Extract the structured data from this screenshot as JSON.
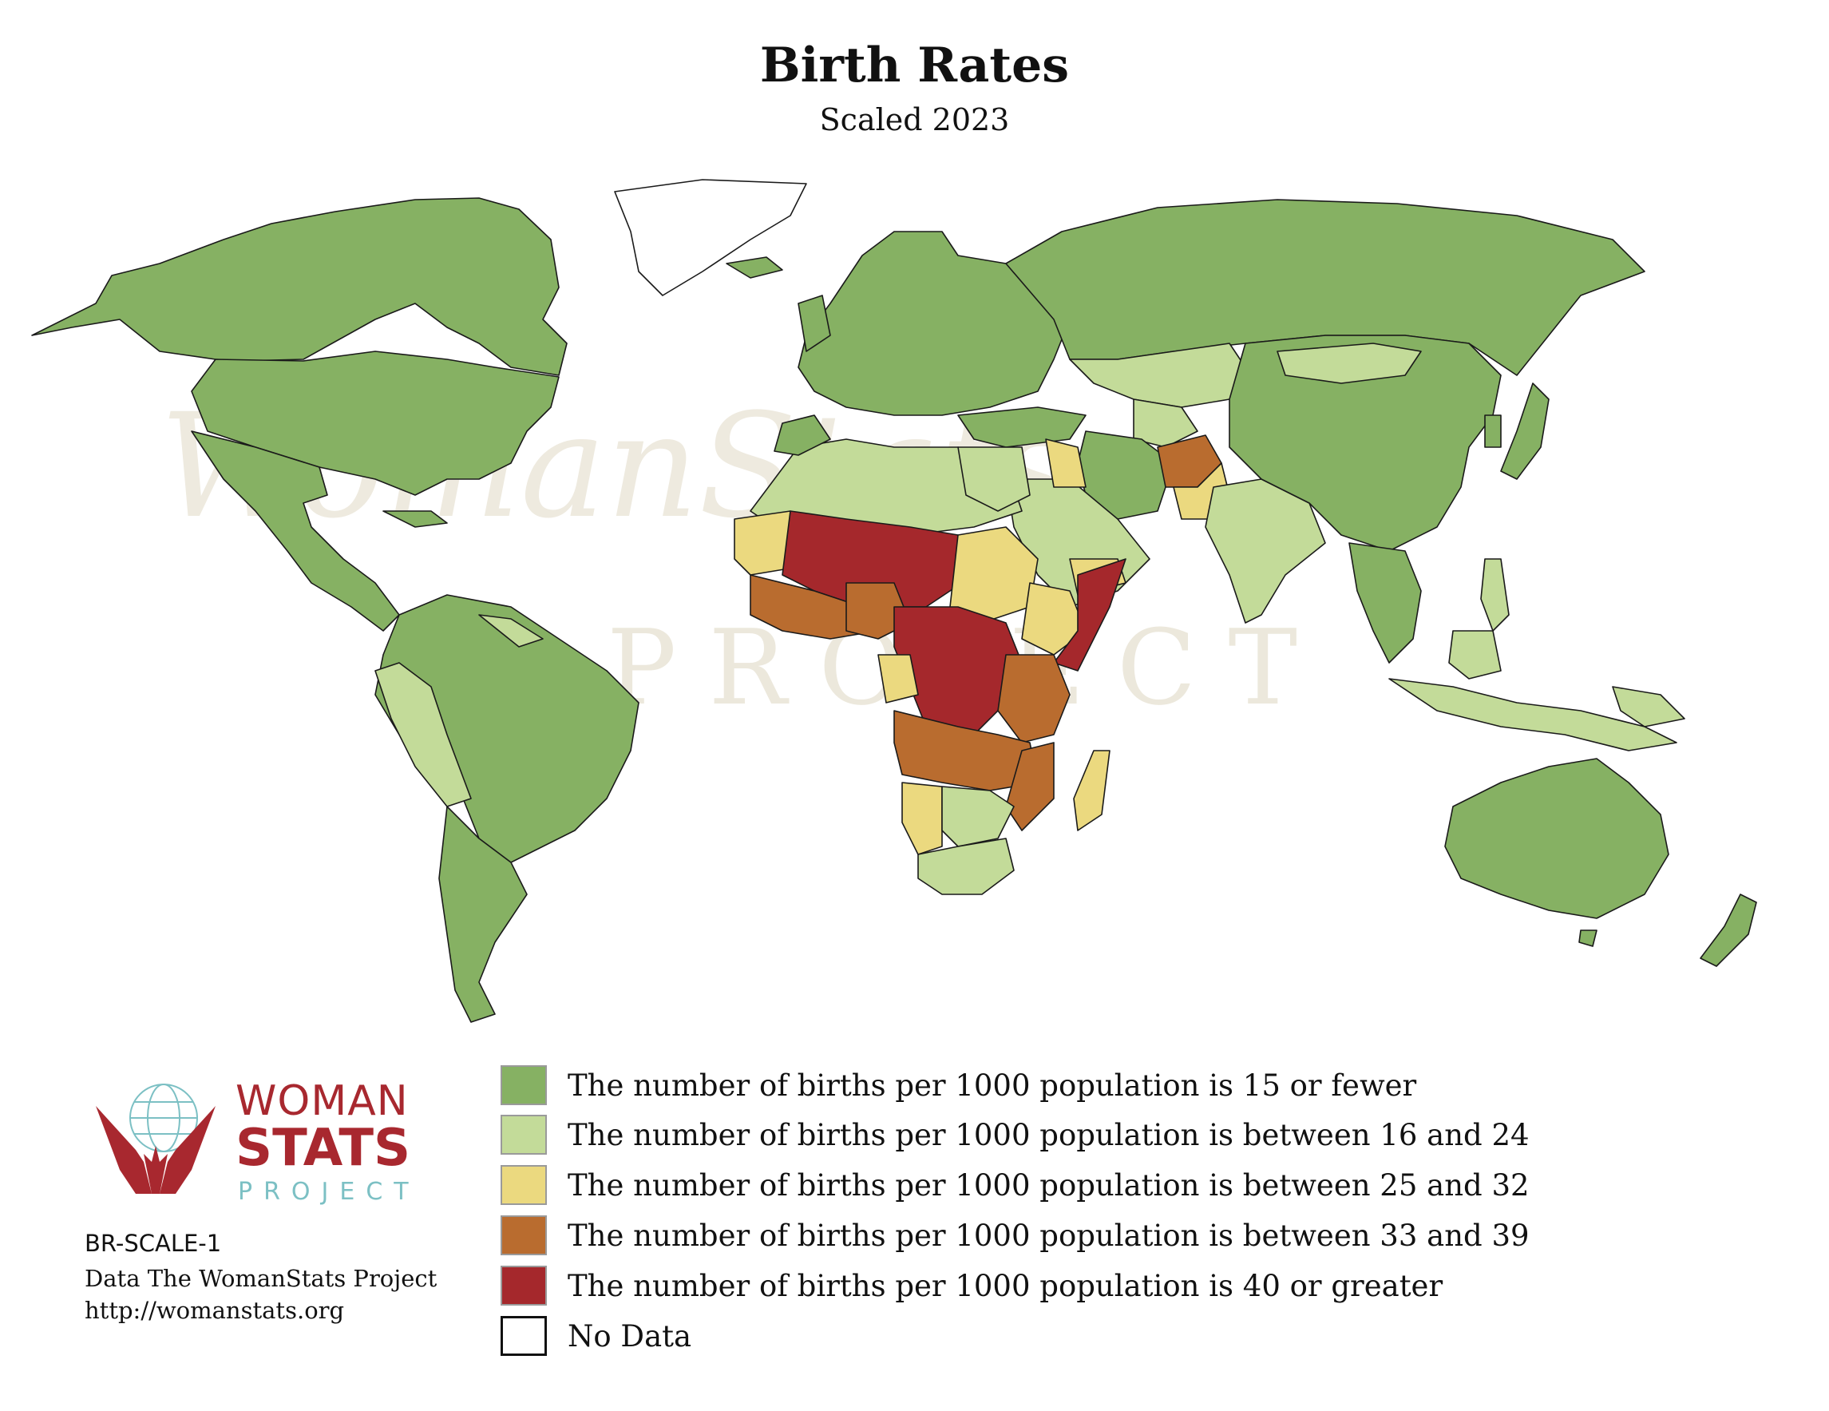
{
  "map": {
    "title": "Birth Rates",
    "subtitle": "Scaled 2023"
  },
  "legend": {
    "items": [
      {
        "label": "The number of births per 1000 population is 15 or fewer",
        "color": "#86b163"
      },
      {
        "label": "The number of births per 1000 population is between 16 and 24",
        "color": "#c3db99"
      },
      {
        "label": "The number of births per 1000 population is between 25 and 32",
        "color": "#ebd97f"
      },
      {
        "label": "The number of births per 1000 population is between 33 and 39",
        "color": "#b96c2f"
      },
      {
        "label": "The number of births per 1000 population is 40 or greater",
        "color": "#a5282c"
      },
      {
        "label": "No Data",
        "color": "#ffffff"
      }
    ]
  },
  "logo": {
    "line1": "WOMAN",
    "line2": "STATS",
    "line3": "PROJECT",
    "red": "#a8282f",
    "teal": "#7cc0c4"
  },
  "watermark": {
    "line1": "WomanStats",
    "line2": "PROJECT"
  },
  "footer": {
    "code": "BR-SCALE-1",
    "credit": "Data The WomanStats Project",
    "url": "http://womanstats.org"
  }
}
